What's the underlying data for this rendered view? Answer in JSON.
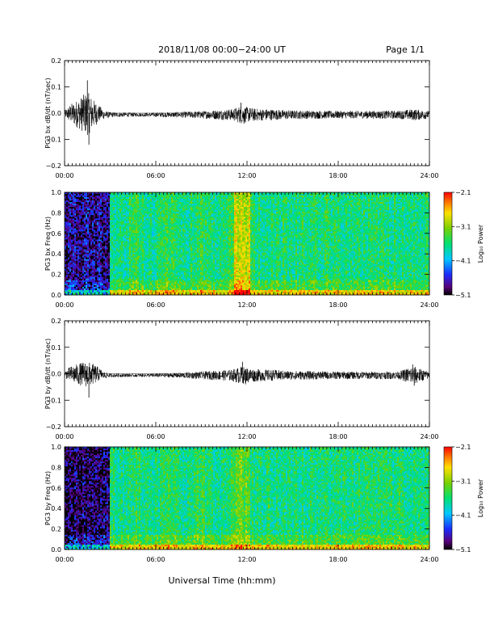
{
  "header": {
    "title": "2018/11/08  00:00−24:00 UT",
    "page": "Page 1/1"
  },
  "x_axis": {
    "label": "Universal Time (hh:mm)",
    "tick_labels": [
      "00:00",
      "06:00",
      "12:00",
      "18:00",
      "24:00"
    ],
    "range_hours": [
      0,
      24
    ]
  },
  "chart_data": [
    {
      "type": "line",
      "ylabel": "PG3 bx dB/dt (nT/sec)",
      "ylim": [
        -0.2,
        0.2
      ],
      "yticks": [
        "0.2",
        "0.1",
        "0.0",
        "−0.1",
        "−0.2"
      ],
      "line_color": "#000000",
      "envelope": [
        {
          "x": 0.0,
          "amp": 0.01
        },
        {
          "x": 0.4,
          "amp": 0.03
        },
        {
          "x": 1.0,
          "amp": 0.05
        },
        {
          "x": 1.5,
          "amp": 0.07
        },
        {
          "x": 2.0,
          "amp": 0.04
        },
        {
          "x": 2.5,
          "amp": 0.015
        },
        {
          "x": 3.0,
          "amp": 0.008
        },
        {
          "x": 5.0,
          "amp": 0.006
        },
        {
          "x": 7.0,
          "amp": 0.008
        },
        {
          "x": 9.0,
          "amp": 0.012
        },
        {
          "x": 11.0,
          "amp": 0.018
        },
        {
          "x": 11.6,
          "amp": 0.028
        },
        {
          "x": 12.5,
          "amp": 0.02
        },
        {
          "x": 15.0,
          "amp": 0.014
        },
        {
          "x": 18.0,
          "amp": 0.012
        },
        {
          "x": 22.0,
          "amp": 0.013
        },
        {
          "x": 23.0,
          "amp": 0.018
        },
        {
          "x": 24.0,
          "amp": 0.012
        }
      ],
      "spikes": [
        {
          "x": 1.5,
          "y": 0.125
        },
        {
          "x": 1.6,
          "y": -0.12
        },
        {
          "x": 1.2,
          "y": 0.05
        },
        {
          "x": 11.6,
          "y": 0.04
        },
        {
          "x": 11.8,
          "y": -0.04
        }
      ]
    },
    {
      "type": "heatmap",
      "ylabel": "PG3 bx Freq (Hz)",
      "ylim": [
        0.0,
        1.0
      ],
      "yticks": [
        "1.0",
        "0.8",
        "0.6",
        "0.4",
        "0.2",
        "0.0"
      ],
      "colorbar": {
        "label": "Log₁₀ Power",
        "ticks": [
          "−2.1",
          "−3.1",
          "−4.1",
          "−5.1"
        ],
        "range": [
          -5.1,
          -2.1
        ]
      },
      "features": [
        {
          "x0": 0.0,
          "x1": 3.0,
          "level": 0.15,
          "desc": "quiet"
        },
        {
          "x0": 11.2,
          "x1": 12.2,
          "level": 0.72,
          "desc": "enhanced"
        }
      ]
    },
    {
      "type": "line",
      "ylabel": "PG3 by dB/dt (nT/sec)",
      "ylim": [
        -0.2,
        0.2
      ],
      "yticks": [
        "0.2",
        "0.1",
        "0.0",
        "−0.1",
        "−0.2"
      ],
      "line_color": "#000000",
      "envelope": [
        {
          "x": 0.0,
          "amp": 0.01
        },
        {
          "x": 0.4,
          "amp": 0.025
        },
        {
          "x": 1.0,
          "amp": 0.035
        },
        {
          "x": 1.5,
          "amp": 0.04
        },
        {
          "x": 2.0,
          "amp": 0.03
        },
        {
          "x": 2.5,
          "amp": 0.012
        },
        {
          "x": 3.0,
          "amp": 0.006
        },
        {
          "x": 5.0,
          "amp": 0.005
        },
        {
          "x": 7.0,
          "amp": 0.007
        },
        {
          "x": 9.0,
          "amp": 0.012
        },
        {
          "x": 11.0,
          "amp": 0.018
        },
        {
          "x": 11.6,
          "amp": 0.028
        },
        {
          "x": 12.5,
          "amp": 0.02
        },
        {
          "x": 15.0,
          "amp": 0.014
        },
        {
          "x": 18.0,
          "amp": 0.012
        },
        {
          "x": 22.0,
          "amp": 0.012
        },
        {
          "x": 22.9,
          "amp": 0.03
        },
        {
          "x": 24.0,
          "amp": 0.01
        }
      ],
      "spikes": [
        {
          "x": 1.6,
          "y": -0.09
        },
        {
          "x": 1.2,
          "y": 0.04
        },
        {
          "x": 11.7,
          "y": 0.045
        },
        {
          "x": 11.9,
          "y": -0.04
        },
        {
          "x": 22.9,
          "y": 0.035
        },
        {
          "x": 23.0,
          "y": -0.045
        }
      ]
    },
    {
      "type": "heatmap",
      "ylabel": "PG3 by Freq (Hz)",
      "ylim": [
        0.0,
        1.0
      ],
      "yticks": [
        "1.0",
        "0.8",
        "0.6",
        "0.4",
        "0.2",
        "0.0"
      ],
      "colorbar": {
        "label": "Log₁₀ Power",
        "ticks": [
          "−2.1",
          "−3.1",
          "−4.1",
          "−5.1"
        ],
        "range": [
          -5.1,
          -2.1
        ]
      },
      "features": [
        {
          "x0": 0.0,
          "x1": 3.0,
          "level": 0.1,
          "desc": "quiet"
        },
        {
          "x0": 11.2,
          "x1": 12.2,
          "level": 0.6,
          "desc": "enhanced"
        }
      ]
    }
  ]
}
